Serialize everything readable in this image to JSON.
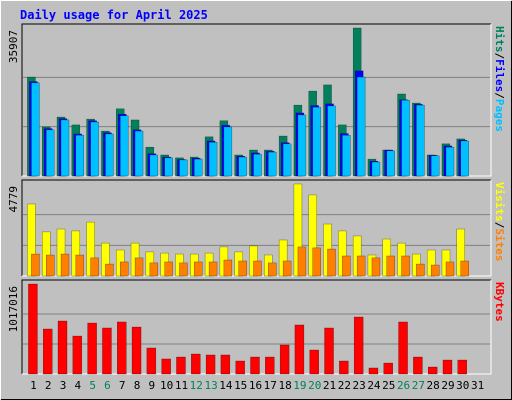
{
  "title": "Daily usage for April 2025",
  "legend_separator": "/",
  "chart_data": [
    {
      "type": "bar",
      "ylim": [
        0,
        35907
      ],
      "yticks": [
        35907
      ],
      "grid": true,
      "series": [
        {
          "name": "Hits",
          "color": "#00805c",
          "values": [
            24000,
            11900,
            14300,
            12400,
            13800,
            10900,
            16300,
            13600,
            7000,
            5100,
            4400,
            4600,
            9500,
            13400,
            5100,
            6300,
            6300,
            9700,
            17200,
            20600,
            22100,
            12400,
            35907,
            4100,
            6300,
            19900,
            17700,
            5100,
            7800,
            9000,
            null
          ]
        },
        {
          "name": "Files",
          "color": "#0000ff",
          "values": [
            22900,
            11500,
            13900,
            10200,
            13400,
            10500,
            15000,
            11200,
            5400,
            4600,
            4000,
            4300,
            8500,
            12300,
            4800,
            5600,
            6000,
            8100,
            15300,
            17100,
            17500,
            10300,
            25500,
            3600,
            6300,
            18500,
            17400,
            5000,
            7300,
            8700,
            null
          ]
        },
        {
          "name": "Pages",
          "color": "#00c0ff",
          "values": [
            22600,
            11200,
            13600,
            9900,
            13100,
            10200,
            14600,
            10900,
            5100,
            4400,
            3900,
            4100,
            8200,
            11900,
            4600,
            5300,
            5800,
            7800,
            14800,
            16700,
            17000,
            9900,
            24000,
            3400,
            6100,
            18400,
            17200,
            4900,
            7000,
            8500,
            null
          ]
        }
      ]
    },
    {
      "type": "bar",
      "ylim": [
        0,
        4779
      ],
      "yticks": [
        4779
      ],
      "grid": true,
      "series": [
        {
          "name": "Visits",
          "color": "#ffff00",
          "values": [
            3740,
            2290,
            2440,
            2340,
            2800,
            1710,
            1350,
            1710,
            1250,
            1190,
            1140,
            1140,
            1190,
            1510,
            1250,
            1560,
            1090,
            1870,
            4779,
            4210,
            2700,
            2340,
            2080,
            1090,
            1920,
            1710,
            1140,
            1350,
            1350,
            2440,
            null
          ]
        },
        {
          "name": "Sites",
          "color": "#ff8000",
          "values": [
            1140,
            1090,
            1140,
            1090,
            940,
            620,
            730,
            940,
            680,
            730,
            680,
            730,
            730,
            830,
            780,
            780,
            680,
            780,
            1510,
            1460,
            1400,
            1040,
            1040,
            940,
            1040,
            1040,
            620,
            570,
            730,
            780,
            null
          ]
        }
      ]
    },
    {
      "type": "bar",
      "ylim": [
        0,
        1017016
      ],
      "yticks": [
        1017016
      ],
      "grid": true,
      "categories": [
        "1",
        "2",
        "3",
        "4",
        "5",
        "6",
        "7",
        "8",
        "9",
        "10",
        "11",
        "12",
        "13",
        "14",
        "15",
        "16",
        "17",
        "18",
        "19",
        "20",
        "21",
        "22",
        "23",
        "24",
        "25",
        "26",
        "27",
        "28",
        "29",
        "30",
        "31"
      ],
      "category_colors": [
        "#000000",
        "#000000",
        "#000000",
        "#000000",
        "#00805c",
        "#00805c",
        "#000000",
        "#000000",
        "#000000",
        "#000000",
        "#000000",
        "#00805c",
        "#00805c",
        "#000000",
        "#000000",
        "#000000",
        "#000000",
        "#000000",
        "#00805c",
        "#00805c",
        "#000000",
        "#000000",
        "#000000",
        "#000000",
        "#000000",
        "#00805c",
        "#00805c",
        "#000000",
        "#000000",
        "#000000",
        "#000000"
      ],
      "series": [
        {
          "name": "KBytes",
          "color": "#ff0000",
          "values": [
            1017016,
            508500,
            599000,
            429000,
            576000,
            520000,
            588000,
            531000,
            294000,
            170000,
            192000,
            226000,
            215000,
            215000,
            147000,
            192000,
            192000,
            328000,
            554000,
            271000,
            520000,
            147000,
            644000,
            68000,
            124000,
            588000,
            192000,
            79000,
            158000,
            158000,
            null
          ]
        }
      ]
    }
  ]
}
